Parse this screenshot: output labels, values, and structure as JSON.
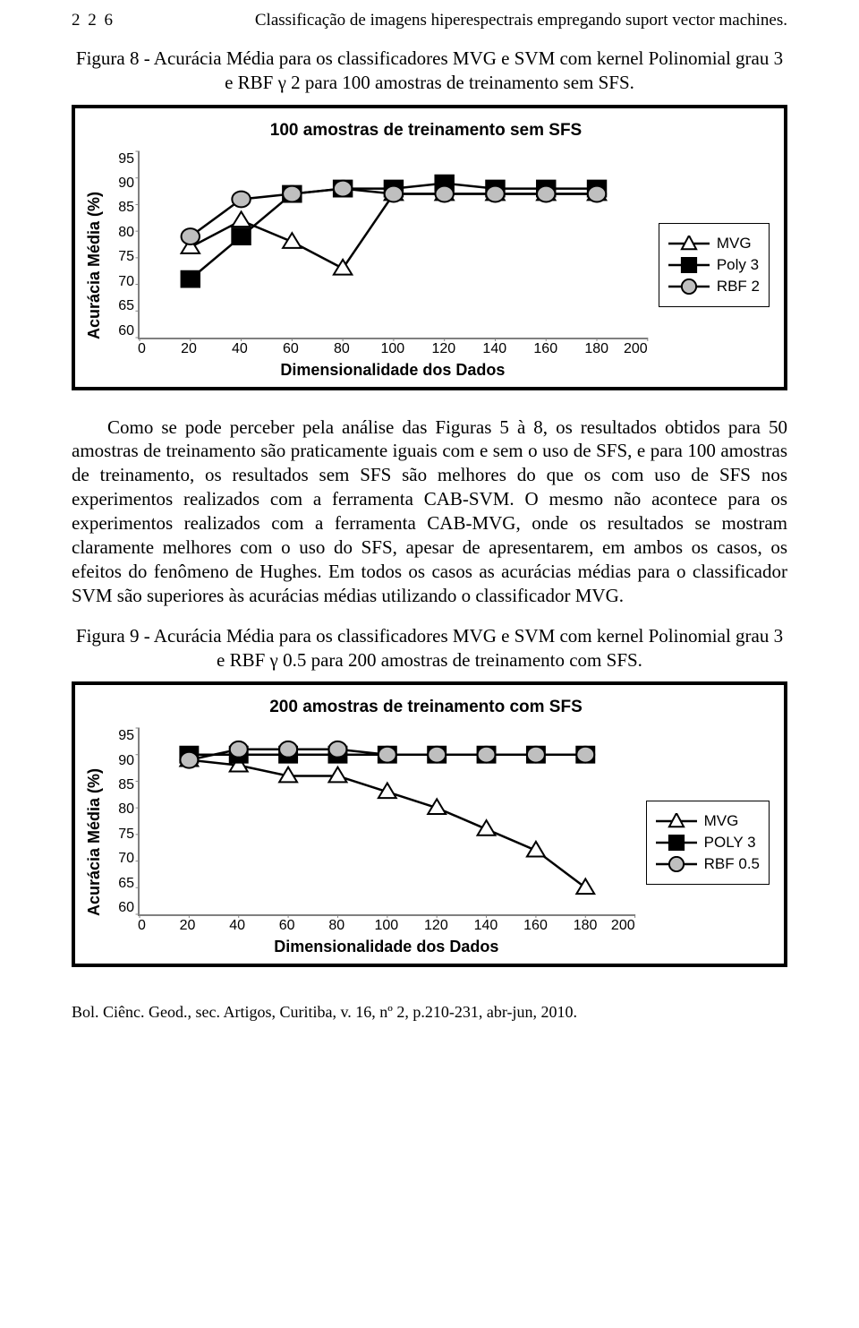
{
  "page_number": "2 2 6",
  "running_title": "Classificação de imagens hiperespectrais empregando suport vector machines.",
  "figure8": {
    "caption": "Figura 8 - Acurácia Média para os classificadores MVG e SVM com kernel Polinomial grau 3 e RBF γ 2 para 100 amostras de treinamento sem SFS.",
    "chart": {
      "type": "line",
      "title": "100 amostras de treinamento sem SFS",
      "xlabel": "Dimensionalidade dos Dados",
      "ylabel": "Acurácia Média (%)",
      "xlim": [
        0,
        200
      ],
      "ylim": [
        60,
        95
      ],
      "xtick_step": 20,
      "ytick_step": 5,
      "xticks": [
        0,
        20,
        40,
        60,
        80,
        100,
        120,
        140,
        160,
        180,
        200
      ],
      "yticks": [
        95,
        90,
        85,
        80,
        75,
        70,
        65,
        60
      ],
      "background": "#ffffff",
      "axis_color": "#808080",
      "line_width": 2.5,
      "marker_size": 9,
      "series": [
        {
          "name": "MVG",
          "marker": "triangle",
          "marker_fill": "#ffffff",
          "marker_stroke": "#000000",
          "line_color": "#000000",
          "x": [
            20,
            40,
            60,
            80,
            100,
            120,
            140,
            160,
            180
          ],
          "y": [
            77,
            82,
            78,
            73,
            87,
            87,
            87,
            87,
            87
          ]
        },
        {
          "name": "Poly 3",
          "marker": "square",
          "marker_fill": "#000000",
          "marker_stroke": "#000000",
          "line_color": "#000000",
          "x": [
            20,
            40,
            60,
            80,
            100,
            120,
            140,
            160,
            180
          ],
          "y": [
            71,
            79,
            87,
            88,
            88,
            89,
            88,
            88,
            88
          ]
        },
        {
          "name": "RBF 2",
          "marker": "circle",
          "marker_fill": "#bfbfbf",
          "marker_stroke": "#000000",
          "line_color": "#000000",
          "x": [
            20,
            40,
            60,
            80,
            100,
            120,
            140,
            160,
            180
          ],
          "y": [
            79,
            86,
            87,
            88,
            87,
            87,
            87,
            87,
            87
          ]
        }
      ]
    }
  },
  "paragraph": "Como se pode perceber pela análise das Figuras 5 à 8, os resultados obtidos para 50 amostras de treinamento são praticamente iguais com e sem o uso de SFS, e para 100 amostras de treinamento, os resultados sem SFS são melhores do que os com uso de SFS nos experimentos realizados com a ferramenta CAB-SVM. O mesmo não acontece para os experimentos realizados com a ferramenta CAB-MVG, onde os resultados se mostram claramente melhores com o uso do SFS, apesar de apresentarem, em ambos os casos, os efeitos do fenômeno de Hughes. Em todos os casos as acurácias médias para o classificador SVM são superiores às acurácias médias utilizando o classificador MVG.",
  "figure9": {
    "caption": "Figura 9 - Acurácia Média para os classificadores MVG e SVM com kernel Polinomial grau 3 e RBF γ 0.5 para 200 amostras de treinamento com SFS.",
    "chart": {
      "type": "line",
      "title": "200 amostras de treinamento com SFS",
      "xlabel": "Dimensionalidade dos Dados",
      "ylabel": "Acurácia Média (%)",
      "xlim": [
        0,
        200
      ],
      "ylim": [
        60,
        95
      ],
      "xtick_step": 20,
      "ytick_step": 5,
      "xticks": [
        0,
        20,
        40,
        60,
        80,
        100,
        120,
        140,
        160,
        180,
        200
      ],
      "yticks": [
        95,
        90,
        85,
        80,
        75,
        70,
        65,
        60
      ],
      "background": "#ffffff",
      "axis_color": "#808080",
      "line_width": 2.5,
      "marker_size": 9,
      "series": [
        {
          "name": "MVG",
          "marker": "triangle",
          "marker_fill": "#ffffff",
          "marker_stroke": "#000000",
          "line_color": "#000000",
          "x": [
            20,
            40,
            60,
            80,
            100,
            120,
            140,
            160,
            180
          ],
          "y": [
            89,
            88,
            86,
            86,
            83,
            80,
            76,
            72,
            65
          ]
        },
        {
          "name": "POLY 3",
          "marker": "square",
          "marker_fill": "#000000",
          "marker_stroke": "#000000",
          "line_color": "#000000",
          "x": [
            20,
            40,
            60,
            80,
            100,
            120,
            140,
            160,
            180
          ],
          "y": [
            90,
            90,
            90,
            90,
            90,
            90,
            90,
            90,
            90
          ]
        },
        {
          "name": "RBF 0.5",
          "marker": "circle",
          "marker_fill": "#bfbfbf",
          "marker_stroke": "#000000",
          "line_color": "#000000",
          "x": [
            20,
            40,
            60,
            80,
            100,
            120,
            140,
            160,
            180
          ],
          "y": [
            89,
            91,
            91,
            91,
            90,
            90,
            90,
            90,
            90
          ]
        }
      ]
    }
  },
  "footer": "Bol. Ciênc. Geod., sec. Artigos, Curitiba, v. 16, nº 2, p.210-231, abr-jun, 2010."
}
